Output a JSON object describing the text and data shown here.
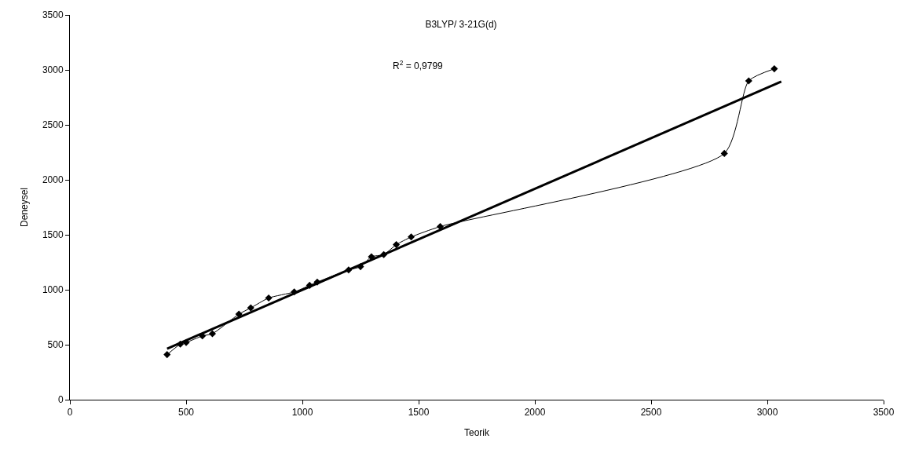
{
  "chart_data": {
    "type": "line",
    "title": "B3LYP/ 3-21G(d)",
    "xlabel": "Teorik",
    "ylabel": "Deneysel",
    "annotations": [
      "R$^{2}$ = 0,9799"
    ],
    "series": [
      {
        "color": "#000000",
        "marker": "diamond",
        "x": [
          418,
          475,
          500,
          570,
          613,
          727,
          778,
          855,
          965,
          1031,
          1064,
          1199,
          1250,
          1297,
          1350,
          1404,
          1468,
          1593,
          2815,
          2920,
          3030
        ],
        "values": [
          410,
          505,
          520,
          580,
          600,
          778,
          835,
          925,
          980,
          1040,
          1070,
          1180,
          1210,
          1300,
          1320,
          1410,
          1480,
          1575,
          2240,
          2900,
          3010
        ]
      },
      {
        "color": "#000000",
        "marker": "none",
        "x": [
          418,
          3060
        ],
        "values": [
          464,
          2893
        ]
      }
    ],
    "xlim": [
      0,
      3500
    ],
    "ylim": [
      0,
      3500
    ],
    "xticks": [
      0,
      500,
      1000,
      1500,
      2000,
      2500,
      3000,
      3500
    ],
    "yticks": [
      0,
      500,
      1000,
      1500,
      2000,
      2500,
      3000,
      3500
    ]
  }
}
